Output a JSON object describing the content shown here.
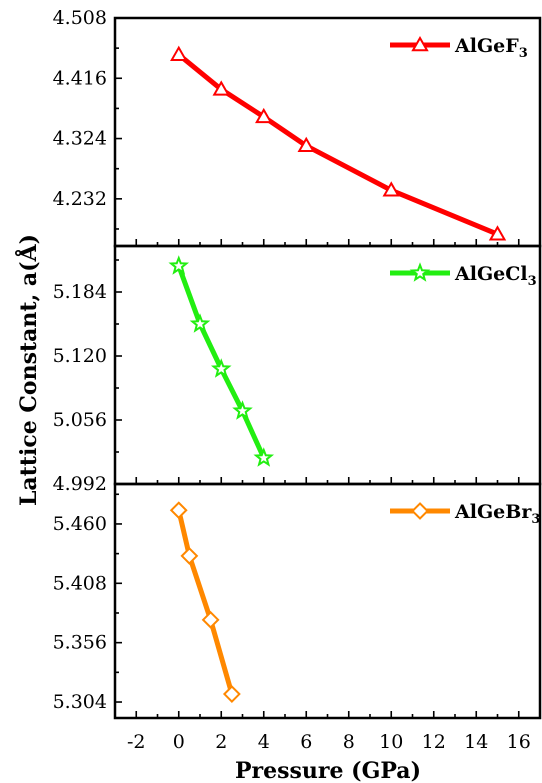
{
  "chart_data": {
    "type": "line",
    "xlabel": "Pressure (GPa)",
    "ylabel": "Lattice Constant, a(Å)",
    "xlim": [
      -3,
      17
    ],
    "xticks": [
      "-2",
      "0",
      "2",
      "4",
      "6",
      "8",
      "10",
      "12",
      "14",
      "16"
    ],
    "grid": false,
    "legend_placement": "top-right",
    "panels": [
      {
        "series_name": "AlGeF",
        "series_subscript": "3",
        "color": "#ff0000",
        "marker": "triangle-open",
        "x": [
          0,
          2,
          4,
          6,
          10,
          15
        ],
        "y": [
          4.452,
          4.399,
          4.357,
          4.313,
          4.245,
          4.178
        ],
        "ylim": [
          4.16,
          4.508
        ],
        "yticks": [
          "4.232",
          "4.324",
          "4.416",
          "4.508"
        ]
      },
      {
        "series_name": "AlGeCl",
        "series_subscript": "3",
        "color": "#22ee11",
        "marker": "star-open",
        "x": [
          0,
          1,
          2,
          3,
          4
        ],
        "y": [
          5.21,
          5.152,
          5.107,
          5.065,
          5.018
        ],
        "ylim": [
          4.992,
          5.23
        ],
        "yticks": [
          "4.992",
          "5.056",
          "5.120",
          "5.184"
        ]
      },
      {
        "series_name": "AlGeBr",
        "series_subscript": "3",
        "color": "#ff8800",
        "marker": "diamond-open",
        "x": [
          0,
          0.5,
          1.5,
          2.5
        ],
        "y": [
          5.472,
          5.432,
          5.376,
          5.311
        ],
        "ylim": [
          5.29,
          5.495
        ],
        "yticks": [
          "5.304",
          "5.356",
          "5.408",
          "5.460"
        ]
      }
    ]
  }
}
